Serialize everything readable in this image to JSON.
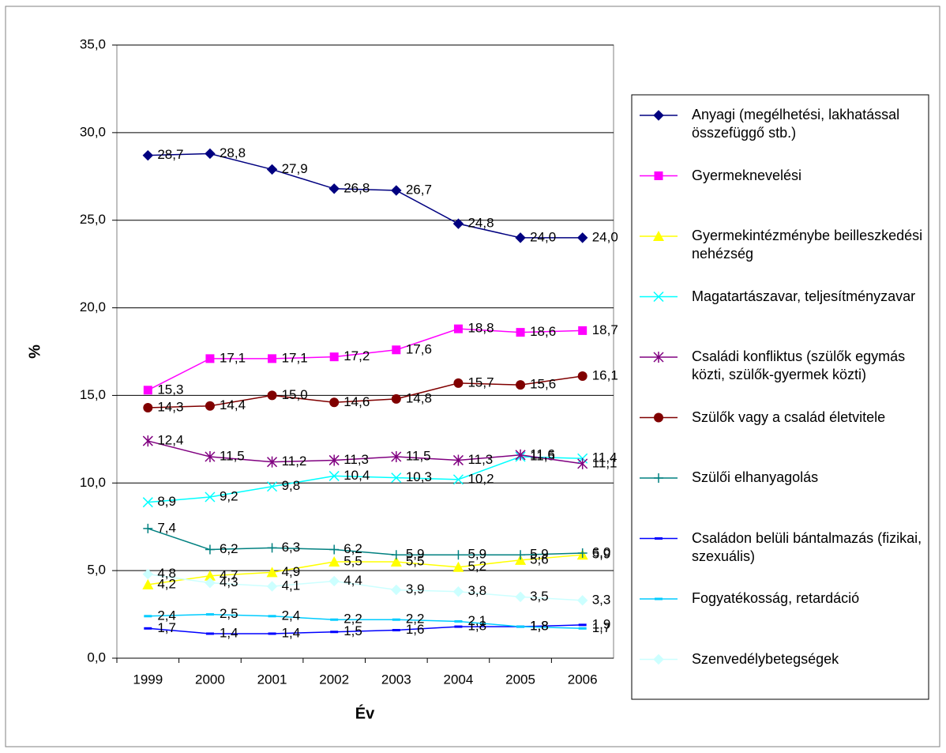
{
  "chart_data": {
    "type": "line",
    "x_label": "Év",
    "y_label": "%",
    "categories": [
      "1999",
      "2000",
      "2001",
      "2002",
      "2003",
      "2004",
      "2005",
      "2006"
    ],
    "ylim": [
      0,
      35
    ],
    "yticks": [
      {
        "value": 0,
        "label": "0,0"
      },
      {
        "value": 5,
        "label": "5,0"
      },
      {
        "value": 10,
        "label": "10,0"
      },
      {
        "value": 15,
        "label": "15,0"
      },
      {
        "value": 20,
        "label": "20,0"
      },
      {
        "value": 25,
        "label": "25,0"
      },
      {
        "value": 30,
        "label": "30,0"
      },
      {
        "value": 35,
        "label": "35,0"
      }
    ],
    "grid": true,
    "legend": "right",
    "series": [
      {
        "name": "Anyagi (megélhetési, lakhatással összefüggő stb.)",
        "color": "#000080",
        "marker": "diamond",
        "values": [
          28.7,
          28.8,
          27.9,
          26.8,
          26.7,
          24.8,
          24.0,
          24.0
        ],
        "value_labels": [
          "28,7",
          "28,8",
          "27,9",
          "26,8",
          "26,7",
          "24,8",
          "24,0",
          "24,0"
        ]
      },
      {
        "name": "Gyermeknevelési",
        "color": "#ff00ff",
        "marker": "square",
        "values": [
          15.3,
          17.1,
          17.1,
          17.2,
          17.6,
          18.8,
          18.6,
          18.7
        ],
        "value_labels": [
          "15,3",
          "17,1",
          "17,1",
          "17,2",
          "17,6",
          "18,8",
          "18,6",
          "18,7"
        ]
      },
      {
        "name": "Gyermekintézménybe beilleszkedési nehézség",
        "color": "#ffff00",
        "marker": "triangle",
        "values": [
          4.2,
          4.7,
          4.9,
          5.5,
          5.5,
          5.2,
          5.6,
          5.9
        ],
        "value_labels": [
          "4,2",
          "4,7",
          "4,9",
          "5,5",
          "5,5",
          "5,2",
          "5,6",
          "5,9"
        ]
      },
      {
        "name": "Magatartászavar, teljesítményzavar",
        "color": "#00ffff",
        "marker": "x",
        "values": [
          8.9,
          9.2,
          9.8,
          10.4,
          10.3,
          10.2,
          11.5,
          11.4
        ],
        "value_labels": [
          "8,9",
          "9,2",
          "9,8",
          "10,4",
          "10,3",
          "10,2",
          "11,5",
          "11,4"
        ]
      },
      {
        "name": "Családi konfliktus (szülők egymás közti, szülők-gyermek közti)",
        "color": "#800080",
        "marker": "star",
        "values": [
          12.4,
          11.5,
          11.2,
          11.3,
          11.5,
          11.3,
          11.6,
          11.1
        ],
        "value_labels": [
          "12,4",
          "11,5",
          "11,2",
          "11,3",
          "11,5",
          "11,3",
          "11,6",
          "11,1"
        ]
      },
      {
        "name": "Szülők vagy a család életvitele",
        "color": "#800000",
        "marker": "circle",
        "values": [
          14.3,
          14.4,
          15.0,
          14.6,
          14.8,
          15.7,
          15.6,
          16.1
        ],
        "value_labels": [
          "14,3",
          "14,4",
          "15,0",
          "14,6",
          "14,8",
          "15,7",
          "15,6",
          "16,1"
        ]
      },
      {
        "name": "Szülői elhanyagolás",
        "color": "#008080",
        "marker": "plus",
        "values": [
          7.4,
          6.2,
          6.3,
          6.2,
          5.9,
          5.9,
          5.9,
          6.0
        ],
        "value_labels": [
          "7,4",
          "6,2",
          "6,3",
          "6,2",
          "5,9",
          "5,9",
          "5,9",
          "6,0"
        ]
      },
      {
        "name": "Családon belüli bántalmazás (fizikai, szexuális)",
        "color": "#0000ff",
        "marker": "dash",
        "values": [
          1.7,
          1.4,
          1.4,
          1.5,
          1.6,
          1.8,
          1.8,
          1.9
        ],
        "value_labels": [
          "1,7",
          "1,4",
          "1,4",
          "1,5",
          "1,6",
          "1,8",
          "1,8",
          "1,9"
        ]
      },
      {
        "name": "Fogyatékosság, retardáció",
        "color": "#00ccff",
        "marker": "dash",
        "values": [
          2.4,
          2.5,
          2.4,
          2.2,
          2.2,
          2.1,
          1.8,
          1.7
        ],
        "value_labels": [
          "2,4",
          "2,5",
          "2,4",
          "2,2",
          "2,2",
          "2,1",
          "1,8",
          "1,7"
        ]
      },
      {
        "name": "Szenvedélybetegségek",
        "color": "#ccffff",
        "marker": "diamond",
        "values": [
          4.8,
          4.3,
          4.1,
          4.4,
          3.9,
          3.8,
          3.5,
          3.3
        ],
        "value_labels": [
          "4,8",
          "4,3",
          "4,1",
          "4,4",
          "3,9",
          "3,8",
          "3,5",
          "3,3"
        ]
      }
    ]
  }
}
